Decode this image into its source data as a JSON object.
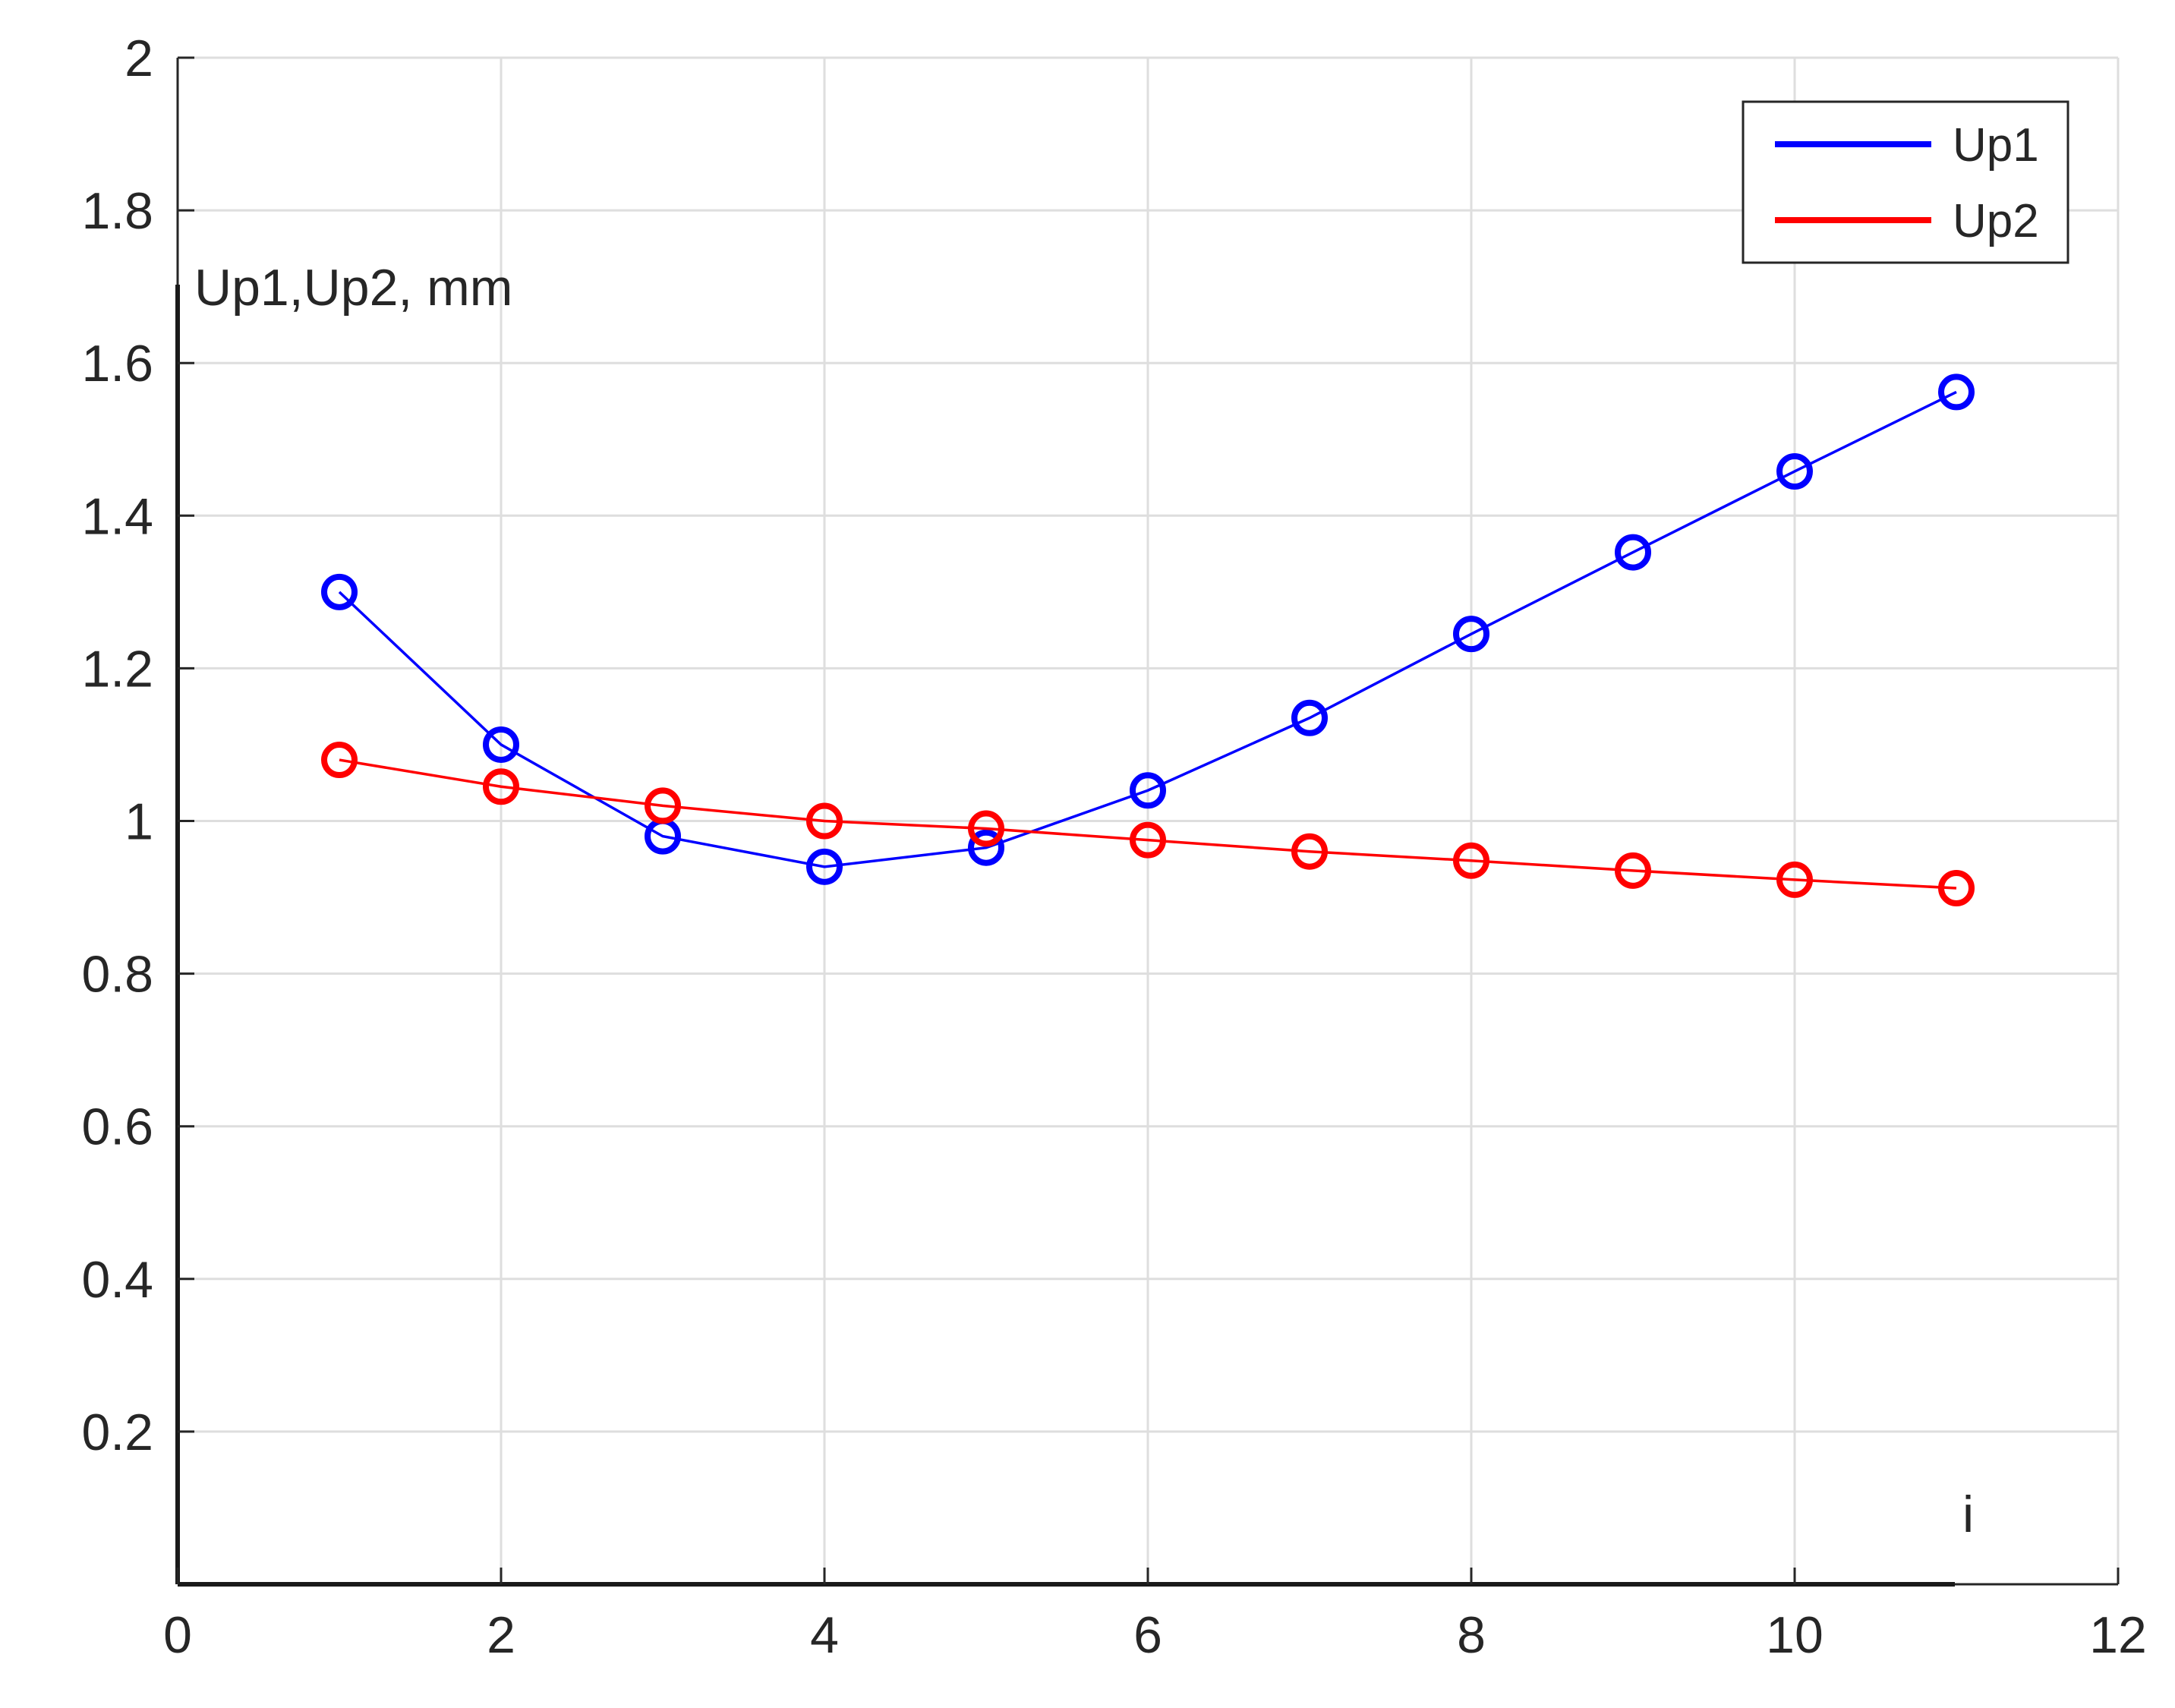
{
  "chart_data": {
    "type": "line",
    "title": "",
    "xlabel": "i",
    "ylabel": "Up1,Up2, mm",
    "xlim": [
      0,
      12
    ],
    "ylim": [
      0,
      2
    ],
    "xticks": [
      "0",
      "2",
      "4",
      "6",
      "8",
      "10",
      "12"
    ],
    "yticks": [
      "0.2",
      "0.4",
      "0.6",
      "0.8",
      "1",
      "1.2",
      "1.4",
      "1.6",
      "1.8",
      "2"
    ],
    "grid": true,
    "legend_position": "top-right",
    "x": [
      1,
      2,
      3,
      4,
      5,
      6,
      7,
      8,
      9,
      10,
      11
    ],
    "series": [
      {
        "name": "Up1",
        "color": "#0000ff",
        "marker": "circle",
        "values": [
          1.3,
          1.1,
          0.98,
          0.94,
          0.965,
          1.04,
          1.135,
          1.245,
          1.352,
          1.458,
          1.562
        ]
      },
      {
        "name": "Up2",
        "color": "#ff0000",
        "marker": "circle",
        "values": [
          1.08,
          1.045,
          1.02,
          1.0,
          0.99,
          0.975,
          0.96,
          0.948,
          0.935,
          0.923,
          0.912
        ]
      }
    ]
  }
}
